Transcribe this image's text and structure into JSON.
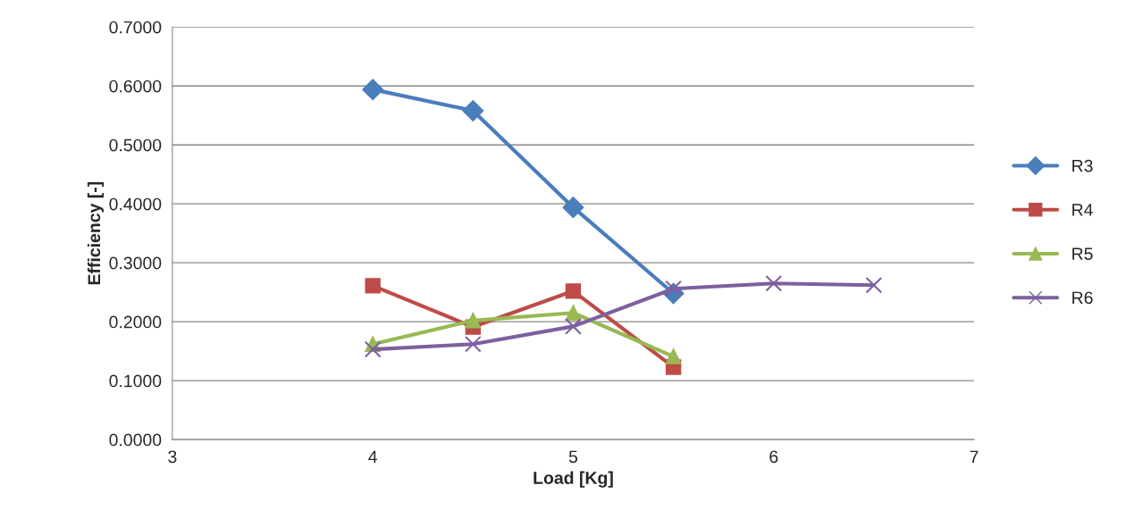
{
  "chart_data": {
    "type": "line",
    "xlabel": "Load [Kg]",
    "ylabel": "Efficiency [-]",
    "xlim": [
      3,
      7
    ],
    "xticks": [
      3,
      4,
      5,
      6,
      7
    ],
    "ylim": [
      0,
      0.7
    ],
    "yticks": [
      {
        "value": 0,
        "label": "0.0000"
      },
      {
        "value": 0.1,
        "label": "0.1000"
      },
      {
        "value": 0.2,
        "label": "0.2000"
      },
      {
        "value": 0.3,
        "label": "0.3000"
      },
      {
        "value": 0.4,
        "label": "0.4000"
      },
      {
        "value": 0.5,
        "label": "0.5000"
      },
      {
        "value": 0.6,
        "label": "0.6000"
      },
      {
        "value": 0.7,
        "label": "0.7000"
      }
    ],
    "grid": "y",
    "legend": "right",
    "line_style": "solid",
    "series": [
      {
        "name": "R3",
        "color": "#4a7ebb",
        "marker": "diamond",
        "x": [
          4,
          4.5,
          5,
          5.5
        ],
        "values": [
          0.594,
          0.558,
          0.394,
          0.248
        ]
      },
      {
        "name": "R4",
        "color": "#be4b48",
        "marker": "square",
        "x": [
          4,
          4.5,
          5,
          5.5
        ],
        "values": [
          0.261,
          0.191,
          0.252,
          0.123
        ]
      },
      {
        "name": "R5",
        "color": "#98b954",
        "marker": "triangle",
        "x": [
          4,
          4.5,
          5,
          5.5
        ],
        "values": [
          0.162,
          0.202,
          0.215,
          0.141
        ]
      },
      {
        "name": "R6",
        "color": "#7d60a0",
        "marker": "cross",
        "x": [
          4,
          4.5,
          5,
          5.5,
          6,
          6.5
        ],
        "values": [
          0.153,
          0.162,
          0.192,
          0.256,
          0.265,
          0.262
        ]
      }
    ]
  }
}
